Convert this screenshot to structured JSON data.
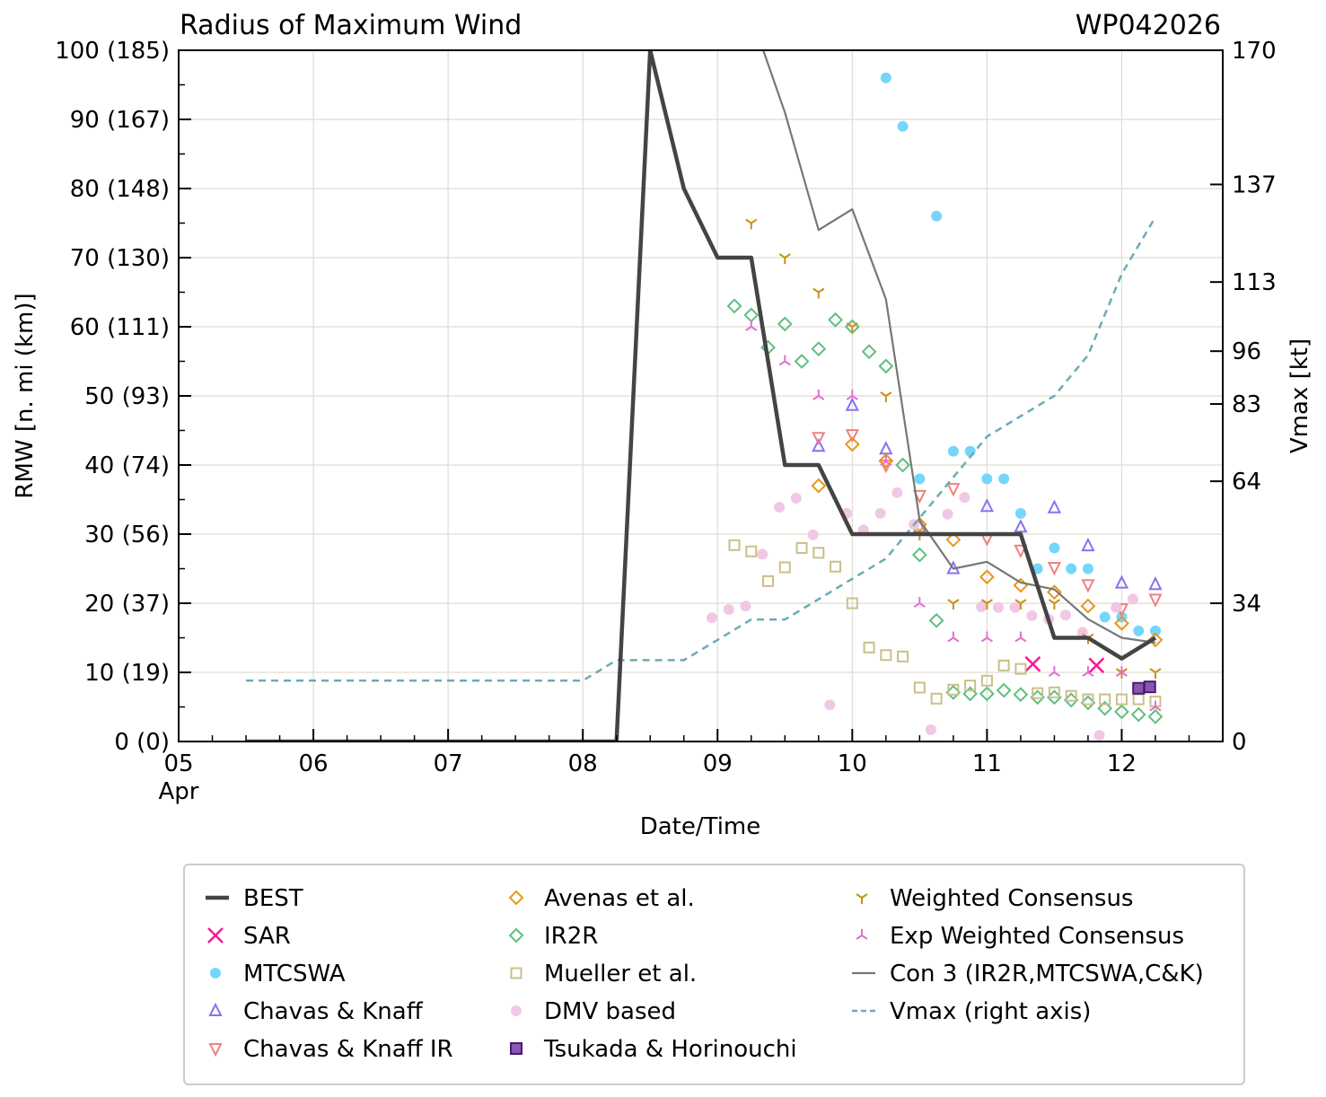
{
  "chart_data": {
    "type": "line",
    "title": "Radius of Maximum Wind",
    "title_right": "WP042026",
    "xlabel": "Date/Time",
    "ylabel": "RMW [n. mi (km)]",
    "ylabel_right": "Vmax [kt]",
    "xlim": [
      "04-05 00:00",
      "04-12 18:00"
    ],
    "ylim": [
      0,
      100
    ],
    "ylim_right": [
      0,
      170
    ],
    "grid": true,
    "legend_placement": "bottom",
    "x_ticks": [
      {
        "t": "04-05 00:00",
        "label": "05",
        "sub": "Apr"
      },
      {
        "t": "04-06 00:00",
        "label": "06"
      },
      {
        "t": "04-07 00:00",
        "label": "07"
      },
      {
        "t": "04-08 00:00",
        "label": "08"
      },
      {
        "t": "04-09 00:00",
        "label": "09"
      },
      {
        "t": "04-10 00:00",
        "label": "10"
      },
      {
        "t": "04-11 00:00",
        "label": "11"
      },
      {
        "t": "04-12 00:00",
        "label": "12"
      }
    ],
    "y_ticks": [
      {
        "v": 0,
        "label": "0 (0)"
      },
      {
        "v": 10,
        "label": "10 (19)"
      },
      {
        "v": 20,
        "label": "20 (37)"
      },
      {
        "v": 30,
        "label": "30 (56)"
      },
      {
        "v": 40,
        "label": "40 (74)"
      },
      {
        "v": 50,
        "label": "50 (93)"
      },
      {
        "v": 60,
        "label": "60 (111)"
      },
      {
        "v": 70,
        "label": "70 (130)"
      },
      {
        "v": 80,
        "label": "80 (148)"
      },
      {
        "v": 90,
        "label": "90 (167)"
      },
      {
        "v": 100,
        "label": "100 (185)"
      }
    ],
    "y_ticks_right": [
      {
        "v": 0,
        "label": "0"
      },
      {
        "v": 34,
        "label": "34"
      },
      {
        "v": 64,
        "label": "64"
      },
      {
        "v": 83,
        "label": "83"
      },
      {
        "v": 96,
        "label": "96"
      },
      {
        "v": 113,
        "label": "113"
      },
      {
        "v": 137,
        "label": "137"
      },
      {
        "v": 170,
        "label": "170"
      }
    ],
    "series": [
      {
        "name": "BEST",
        "marker": "line",
        "color": "#444444",
        "axis": "left",
        "points": [
          [
            "04-05 12:00",
            0
          ],
          [
            "04-08 06:00",
            0
          ],
          [
            "04-08 12:00",
            100
          ],
          [
            "04-08 18:00",
            80
          ],
          [
            "04-09 00:00",
            70
          ],
          [
            "04-09 06:00",
            70
          ],
          [
            "04-09 12:00",
            40
          ],
          [
            "04-09 18:00",
            40
          ],
          [
            "04-10 00:00",
            30
          ],
          [
            "04-10 12:00",
            30
          ],
          [
            "04-11 00:00",
            30
          ],
          [
            "04-11 06:00",
            30
          ],
          [
            "04-11 12:00",
            15
          ],
          [
            "04-11 18:00",
            15
          ],
          [
            "04-12 00:00",
            12
          ],
          [
            "04-12 06:00",
            15
          ]
        ]
      },
      {
        "name": "SAR",
        "marker": "x",
        "color": "#ff1493",
        "axis": "left",
        "points": [
          [
            "04-11 08:10",
            11.2
          ],
          [
            "04-11 19:30",
            11
          ]
        ]
      },
      {
        "name": "MTCSWA",
        "marker": "dot",
        "color": "#75d6fb",
        "axis": "left",
        "points": [
          [
            "04-10 06:00",
            96
          ],
          [
            "04-10 09:00",
            89
          ],
          [
            "04-10 15:00",
            76
          ],
          [
            "04-10 12:00",
            38
          ],
          [
            "04-10 18:00",
            42
          ],
          [
            "04-10 21:00",
            42
          ],
          [
            "04-11 00:00",
            38
          ],
          [
            "04-11 03:00",
            38
          ],
          [
            "04-11 06:00",
            33
          ],
          [
            "04-11 09:00",
            25
          ],
          [
            "04-11 12:00",
            28
          ],
          [
            "04-11 15:00",
            25
          ],
          [
            "04-11 18:00",
            25
          ],
          [
            "04-11 21:00",
            18
          ],
          [
            "04-12 00:00",
            18
          ],
          [
            "04-12 03:00",
            16
          ],
          [
            "04-12 06:00",
            16
          ]
        ]
      },
      {
        "name": "Chavas & Knaff",
        "marker": "triup",
        "color": "#8a70f0",
        "axis": "left",
        "points": [
          [
            "04-09 18:00",
            42.7
          ],
          [
            "04-10 00:00",
            48.6
          ],
          [
            "04-10 06:00",
            42.3
          ],
          [
            "04-10 12:00",
            31
          ],
          [
            "04-10 18:00",
            25
          ],
          [
            "04-11 00:00",
            34
          ],
          [
            "04-11 06:00",
            31
          ],
          [
            "04-11 12:00",
            33.8
          ],
          [
            "04-11 18:00",
            28.3
          ],
          [
            "04-12 00:00",
            22.9
          ],
          [
            "04-12 06:00",
            22.7
          ]
        ]
      },
      {
        "name": "Chavas & Knaff IR",
        "marker": "tridown",
        "color": "#f08080",
        "axis": "left",
        "points": [
          [
            "04-09 18:00",
            44
          ],
          [
            "04-10 00:00",
            44.4
          ],
          [
            "04-10 06:00",
            40
          ],
          [
            "04-10 12:00",
            35.6
          ],
          [
            "04-10 18:00",
            36.6
          ],
          [
            "04-11 00:00",
            29.4
          ],
          [
            "04-11 06:00",
            27.7
          ],
          [
            "04-11 12:00",
            25.2
          ],
          [
            "04-11 18:00",
            22.7
          ],
          [
            "04-12 00:00",
            19.2
          ],
          [
            "04-12 06:00",
            20.6
          ]
        ]
      },
      {
        "name": "Avenas et al.",
        "marker": "diamond",
        "color": "#e8961e",
        "axis": "left",
        "points": [
          [
            "04-09 18:00",
            37
          ],
          [
            "04-10 00:00",
            43
          ],
          [
            "04-10 06:00",
            40.6
          ],
          [
            "04-10 12:00",
            31.4
          ],
          [
            "04-10 18:00",
            29.2
          ],
          [
            "04-11 00:00",
            23.8
          ],
          [
            "04-11 06:00",
            22.6
          ],
          [
            "04-11 12:00",
            21.6
          ],
          [
            "04-11 18:00",
            19.6
          ],
          [
            "04-12 00:00",
            17.1
          ],
          [
            "04-12 06:00",
            14.7
          ]
        ]
      },
      {
        "name": "IR2R",
        "marker": "diamond",
        "color": "#5fbf80",
        "axis": "left",
        "points": [
          [
            "04-09 03:00",
            63
          ],
          [
            "04-09 06:00",
            61.7
          ],
          [
            "04-09 09:00",
            57
          ],
          [
            "04-09 12:00",
            60.4
          ],
          [
            "04-09 15:00",
            55
          ],
          [
            "04-09 18:00",
            56.8
          ],
          [
            "04-09 21:00",
            61
          ],
          [
            "04-10 00:00",
            60
          ],
          [
            "04-10 03:00",
            56.4
          ],
          [
            "04-10 06:00",
            54.3
          ],
          [
            "04-10 09:00",
            40
          ],
          [
            "04-10 12:00",
            27
          ],
          [
            "04-10 15:00",
            17.5
          ],
          [
            "04-10 18:00",
            7.1
          ],
          [
            "04-10 21:00",
            6.9
          ],
          [
            "04-11 00:00",
            6.9
          ],
          [
            "04-11 03:00",
            7.4
          ],
          [
            "04-11 06:00",
            6.8
          ],
          [
            "04-11 09:00",
            6.4
          ],
          [
            "04-11 12:00",
            6.4
          ],
          [
            "04-11 15:00",
            6
          ],
          [
            "04-11 18:00",
            5.6
          ],
          [
            "04-11 21:00",
            4.8
          ],
          [
            "04-12 00:00",
            4.3
          ],
          [
            "04-12 03:00",
            3.9
          ],
          [
            "04-12 06:00",
            3.6
          ]
        ]
      },
      {
        "name": "Mueller et al.",
        "marker": "square",
        "color": "#c8c08a",
        "axis": "left",
        "points": [
          [
            "04-09 03:00",
            28.4
          ],
          [
            "04-09 06:00",
            27.5
          ],
          [
            "04-09 09:00",
            23.2
          ],
          [
            "04-09 12:00",
            25.2
          ],
          [
            "04-09 15:00",
            28
          ],
          [
            "04-09 18:00",
            27.3
          ],
          [
            "04-09 21:00",
            25.3
          ],
          [
            "04-10 00:00",
            20
          ],
          [
            "04-10 03:00",
            13.6
          ],
          [
            "04-10 06:00",
            12.5
          ],
          [
            "04-10 09:00",
            12.3
          ],
          [
            "04-10 12:00",
            7.8
          ],
          [
            "04-10 15:00",
            6.2
          ],
          [
            "04-10 18:00",
            7.5
          ],
          [
            "04-10 21:00",
            8.1
          ],
          [
            "04-11 00:00",
            8.8
          ],
          [
            "04-11 03:00",
            11
          ],
          [
            "04-11 06:00",
            10.5
          ],
          [
            "04-11 09:00",
            7
          ],
          [
            "04-11 12:00",
            7.1
          ],
          [
            "04-11 15:00",
            6.6
          ],
          [
            "04-11 18:00",
            6.1
          ],
          [
            "04-11 21:00",
            6.1
          ],
          [
            "04-12 00:00",
            6.1
          ],
          [
            "04-12 03:00",
            6.1
          ],
          [
            "04-12 06:00",
            5.8
          ]
        ]
      },
      {
        "name": "DMV based",
        "marker": "dot",
        "color": "#f0c8e4",
        "axis": "left",
        "points": [
          [
            "04-08 23:00",
            17.9
          ],
          [
            "04-09 02:00",
            19.1
          ],
          [
            "04-09 05:00",
            19.6
          ],
          [
            "04-09 08:00",
            27.1
          ],
          [
            "04-09 11:00",
            33.9
          ],
          [
            "04-09 14:00",
            35.2
          ],
          [
            "04-09 17:00",
            29.9
          ],
          [
            "04-09 20:00",
            5.3
          ],
          [
            "04-09 23:00",
            33
          ],
          [
            "04-10 02:00",
            30.6
          ],
          [
            "04-10 05:00",
            33
          ],
          [
            "04-10 08:00",
            36
          ],
          [
            "04-10 11:00",
            31.4
          ],
          [
            "04-10 14:00",
            1.7
          ],
          [
            "04-10 17:00",
            32.9
          ],
          [
            "04-10 20:00",
            35.3
          ],
          [
            "04-10 23:00",
            19.5
          ],
          [
            "04-11 02:00",
            19.4
          ],
          [
            "04-11 05:00",
            19.4
          ],
          [
            "04-11 08:00",
            18.2
          ],
          [
            "04-11 11:00",
            17.7
          ],
          [
            "04-11 14:00",
            18.3
          ],
          [
            "04-11 17:00",
            15.8
          ],
          [
            "04-11 20:00",
            0.9
          ],
          [
            "04-11 23:00",
            19.4
          ],
          [
            "04-12 02:00",
            20.6
          ]
        ]
      },
      {
        "name": "Tsukada & Horinouchi",
        "marker": "filledsquare",
        "color": "#7b45a8",
        "axis": "left",
        "points": [
          [
            "04-12 03:00",
            7.7
          ],
          [
            "04-12 05:00",
            7.9
          ]
        ]
      },
      {
        "name": "Weighted Consensus",
        "marker": "y",
        "color": "#c8901a",
        "axis": "left",
        "points": [
          [
            "04-09 06:00",
            75
          ],
          [
            "04-09 12:00",
            70
          ],
          [
            "04-09 18:00",
            65
          ],
          [
            "04-10 00:00",
            60
          ],
          [
            "04-10 06:00",
            50
          ],
          [
            "04-10 12:00",
            30
          ],
          [
            "04-10 18:00",
            20
          ],
          [
            "04-11 00:00",
            20
          ],
          [
            "04-11 06:00",
            20
          ],
          [
            "04-11 12:00",
            20
          ],
          [
            "04-11 18:00",
            15
          ],
          [
            "04-12 00:00",
            10
          ],
          [
            "04-12 06:00",
            10
          ]
        ]
      },
      {
        "name": "Exp Weighted Consensus",
        "marker": "lambda",
        "color": "#e070d0",
        "axis": "left",
        "points": [
          [
            "04-09 06:00",
            60
          ],
          [
            "04-09 12:00",
            55
          ],
          [
            "04-09 18:00",
            50
          ],
          [
            "04-10 00:00",
            50
          ],
          [
            "04-10 06:00",
            40.5
          ],
          [
            "04-10 12:00",
            20
          ],
          [
            "04-10 18:00",
            15
          ],
          [
            "04-11 00:00",
            15
          ],
          [
            "04-11 06:00",
            15
          ],
          [
            "04-11 12:00",
            10
          ],
          [
            "04-11 18:00",
            10
          ],
          [
            "04-12 00:00",
            10
          ],
          [
            "04-12 06:00",
            5
          ]
        ]
      },
      {
        "name": "Con 3 (IR2R,MTCSWA,C&K)",
        "marker": "thinline",
        "color": "#777777",
        "axis": "left",
        "points": [
          [
            "04-09 06:00",
            105
          ],
          [
            "04-09 12:00",
            91
          ],
          [
            "04-09 18:00",
            74
          ],
          [
            "04-10 00:00",
            77
          ],
          [
            "04-10 06:00",
            64
          ],
          [
            "04-10 12:00",
            32
          ],
          [
            "04-10 18:00",
            25
          ],
          [
            "04-11 00:00",
            26
          ],
          [
            "04-11 06:00",
            23
          ],
          [
            "04-11 12:00",
            22
          ],
          [
            "04-11 18:00",
            17.7
          ],
          [
            "04-12 00:00",
            15
          ],
          [
            "04-12 06:00",
            14.3
          ]
        ]
      },
      {
        "name": "Vmax (right axis)",
        "marker": "dashed",
        "color": "#6aacb4",
        "axis": "right",
        "points": [
          [
            "04-05 12:00",
            15
          ],
          [
            "04-08 00:00",
            15
          ],
          [
            "04-08 06:00",
            20
          ],
          [
            "04-08 18:00",
            20
          ],
          [
            "04-09 00:00",
            25
          ],
          [
            "04-09 06:00",
            30
          ],
          [
            "04-09 12:00",
            30
          ],
          [
            "04-09 18:00",
            35
          ],
          [
            "04-10 00:00",
            40
          ],
          [
            "04-10 06:00",
            45
          ],
          [
            "04-10 12:00",
            55
          ],
          [
            "04-10 18:00",
            65
          ],
          [
            "04-11 00:00",
            75
          ],
          [
            "04-11 06:00",
            80
          ],
          [
            "04-11 12:00",
            85
          ],
          [
            "04-11 18:00",
            95
          ],
          [
            "04-12 00:00",
            115
          ],
          [
            "04-12 06:00",
            129
          ]
        ]
      }
    ]
  }
}
